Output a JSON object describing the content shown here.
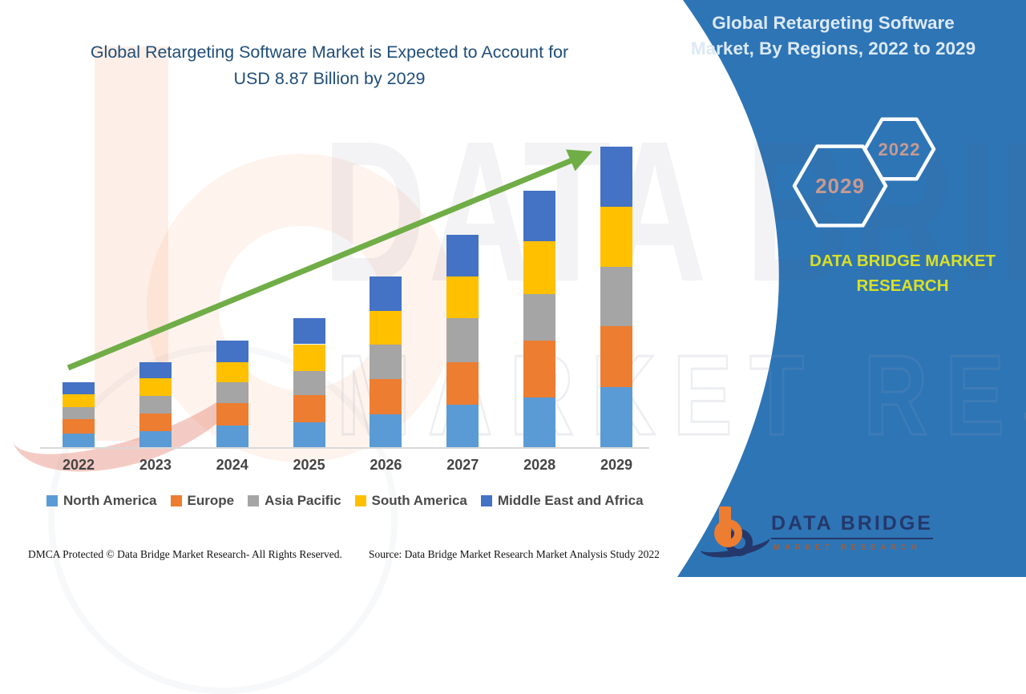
{
  "left_title": {
    "line1": "Global Retargeting Software Market is Expected to Account for",
    "line2": "USD 8.87 Billion by 2029"
  },
  "right_panel": {
    "title_line1": "Global Retargeting Software",
    "title_line2": "Market, By Regions, 2022 to 2029",
    "hexagon_back": {
      "label": "2029"
    },
    "hexagon_front": {
      "label": "2022"
    },
    "brand_line1": "DATA BRIDGE MARKET",
    "brand_line2": "RESEARCH"
  },
  "logo": {
    "name": "DATA BRIDGE",
    "sub": "MARKET RESEARCH"
  },
  "watermark": {
    "line1": "DATA BRIDGE",
    "line2": "MARKET RESEARCH"
  },
  "footer": {
    "dmca": "DMCA Protected © Data Bridge Market Research- All Rights Reserved.",
    "source": "Source: Data Bridge Market Research Market Analysis Study 2022"
  },
  "colors": {
    "blue_panel": "#2E75B6",
    "left_title": "#1F4E79",
    "right_title": "#DCE9F5",
    "trend_arrow": "#70AD47",
    "hexagon_stroke": "#FAFCFF",
    "hexagon_label": "#C79A91",
    "brand_yellow": "#D9E026",
    "axis_label": "#444444",
    "legend_text": "#4a4a4a",
    "logo_orange": "#ED7D31",
    "logo_navy": "#25386b"
  },
  "chart_data": {
    "type": "bar",
    "stacked": true,
    "title": "Global Retargeting Software Market, By Regions, 2022 to 2029",
    "unit": "USD Billion",
    "categories": [
      "2022",
      "2023",
      "2024",
      "2025",
      "2026",
      "2027",
      "2028",
      "2029"
    ],
    "series": [
      {
        "name": "North America",
        "color": "#5B9BD5",
        "values": [
          0.4,
          0.47,
          0.64,
          0.73,
          0.97,
          1.25,
          1.47,
          1.77
        ]
      },
      {
        "name": "Europe",
        "color": "#ED7D31",
        "values": [
          0.43,
          0.52,
          0.66,
          0.8,
          1.04,
          1.25,
          1.68,
          1.8
        ]
      },
      {
        "name": "Asia Pacific",
        "color": "#A5A5A5",
        "values": [
          0.35,
          0.52,
          0.61,
          0.71,
          1.02,
          1.32,
          1.37,
          1.75
        ]
      },
      {
        "name": "South America",
        "color": "#FFC000",
        "values": [
          0.38,
          0.52,
          0.59,
          0.8,
          0.99,
          1.23,
          1.56,
          1.77
        ]
      },
      {
        "name": "Middle East and Africa",
        "color": "#4472C4",
        "values": [
          0.35,
          0.47,
          0.64,
          0.76,
          1.02,
          1.23,
          1.49,
          1.78
        ]
      }
    ],
    "totals": [
      1.91,
      2.5,
      3.14,
      3.8,
      5.04,
      6.28,
      7.57,
      8.87
    ],
    "ylim": [
      0,
      9
    ],
    "xlabel": "",
    "ylabel": "",
    "grid": false,
    "legend_position": "bottom",
    "trend_arrow": true,
    "annotation": "USD 8.87 Billion by 2029"
  }
}
